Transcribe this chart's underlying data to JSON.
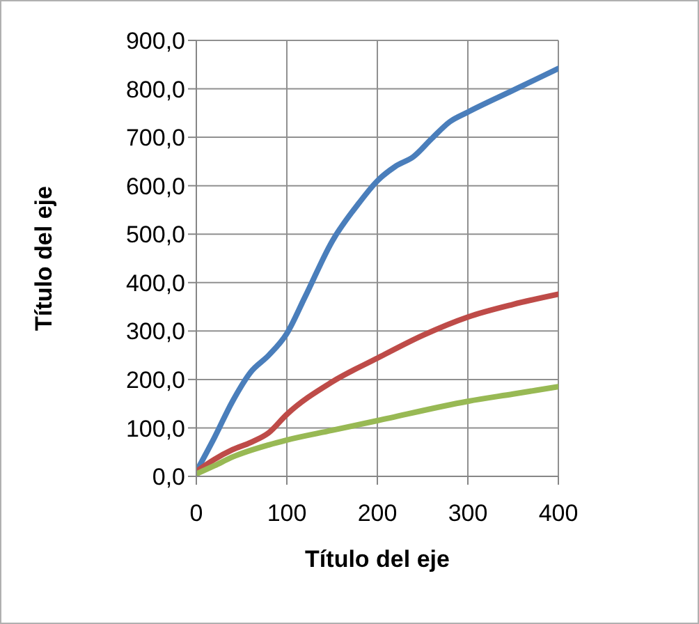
{
  "chart_data": {
    "type": "line",
    "xlabel": "Título del eje",
    "ylabel": "Título del eje",
    "xlim": [
      0,
      400
    ],
    "xticks": [
      0,
      100,
      200,
      300,
      400
    ],
    "ylim": [
      0,
      900
    ],
    "yticks": [
      {
        "value": 0,
        "label": "0,0"
      },
      {
        "value": 100,
        "label": "100,0"
      },
      {
        "value": 200,
        "label": "200,0"
      },
      {
        "value": 300,
        "label": "300,0"
      },
      {
        "value": 400,
        "label": "400,0"
      },
      {
        "value": 500,
        "label": "500,0"
      },
      {
        "value": 600,
        "label": "600,0"
      },
      {
        "value": 700,
        "label": "700,0"
      },
      {
        "value": 800,
        "label": "800,0"
      },
      {
        "value": 900,
        "label": "900,0"
      }
    ],
    "grid": true,
    "marker": "none",
    "line_style": "solid",
    "series": [
      {
        "color": "#4a7ebb",
        "x": [
          0,
          20,
          40,
          60,
          80,
          100,
          120,
          150,
          180,
          200,
          220,
          240,
          260,
          280,
          300,
          350,
          400
        ],
        "values": [
          10,
          80,
          155,
          215,
          250,
          295,
          370,
          485,
          565,
          610,
          640,
          660,
          697,
          732,
          752,
          797,
          842
        ]
      },
      {
        "color": "#be4b48",
        "x": [
          0,
          20,
          40,
          60,
          80,
          100,
          150,
          200,
          250,
          300,
          350,
          400
        ],
        "values": [
          10,
          35,
          55,
          70,
          90,
          128,
          195,
          244,
          291,
          329,
          355,
          376
        ]
      },
      {
        "color": "#98b954",
        "x": [
          0,
          20,
          40,
          80,
          100,
          150,
          200,
          300,
          350,
          400
        ],
        "values": [
          5,
          22,
          40,
          65,
          75,
          95,
          115,
          155,
          170,
          185
        ]
      }
    ]
  }
}
